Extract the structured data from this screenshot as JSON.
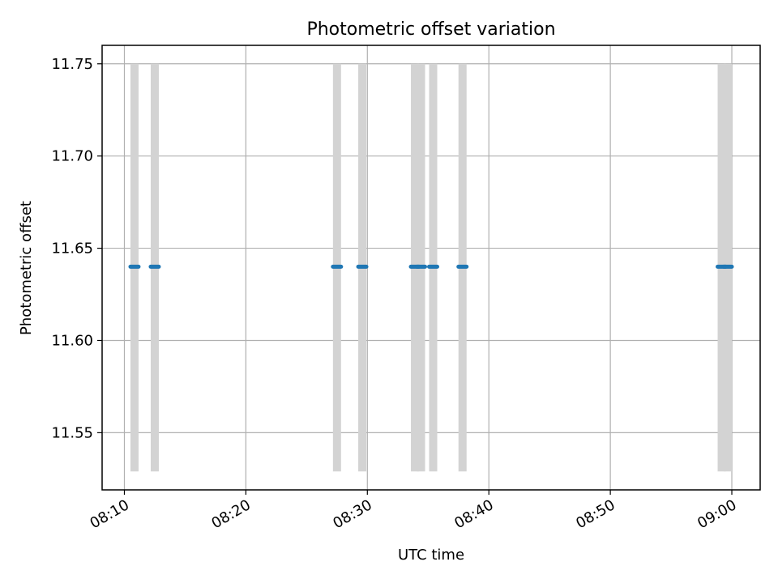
{
  "chart_data": {
    "type": "scatter",
    "title": "Photometric offset variation",
    "xlabel": "UTC time",
    "ylabel": "Photometric offset",
    "x_ticks": [
      "08:10",
      "08:20",
      "08:30",
      "08:40",
      "08:50",
      "09:00"
    ],
    "y_ticks": [
      "11.55",
      "11.60",
      "11.65",
      "11.70",
      "11.75"
    ],
    "xlim": [
      "08:08:10",
      "09:02:20"
    ],
    "ylim": [
      11.519,
      11.76
    ],
    "grid": true,
    "colors": {
      "points": "#1f77b4",
      "bands": "#d3d3d3",
      "grid": "#b0b0b0"
    },
    "exposure_bands": {
      "y_range": [
        11.529,
        11.75
      ],
      "intervals": [
        [
          "08:10:30",
          "08:11:10"
        ],
        [
          "08:12:10",
          "08:12:50"
        ],
        [
          "08:27:10",
          "08:27:50"
        ],
        [
          "08:29:15",
          "08:29:55"
        ],
        [
          "08:33:35",
          "08:34:15"
        ],
        [
          "08:34:05",
          "08:34:45"
        ],
        [
          "08:35:05",
          "08:35:45"
        ],
        [
          "08:37:30",
          "08:38:10"
        ],
        [
          "08:58:50",
          "08:59:30"
        ],
        [
          "08:59:20",
          "09:00:00"
        ]
      ]
    },
    "series": [
      {
        "segments": [
          {
            "x_start": "08:10:30",
            "x_end": "08:11:10",
            "y": 11.64
          },
          {
            "x_start": "08:12:10",
            "x_end": "08:12:50",
            "y": 11.64
          },
          {
            "x_start": "08:27:10",
            "x_end": "08:27:50",
            "y": 11.64
          },
          {
            "x_start": "08:29:15",
            "x_end": "08:29:55",
            "y": 11.64
          },
          {
            "x_start": "08:33:35",
            "x_end": "08:34:15",
            "y": 11.64
          },
          {
            "x_start": "08:34:05",
            "x_end": "08:34:45",
            "y": 11.64
          },
          {
            "x_start": "08:35:05",
            "x_end": "08:35:45",
            "y": 11.64
          },
          {
            "x_start": "08:37:30",
            "x_end": "08:38:10",
            "y": 11.64
          },
          {
            "x_start": "08:58:50",
            "x_end": "08:59:30",
            "y": 11.64
          },
          {
            "x_start": "08:59:20",
            "x_end": "09:00:00",
            "y": 11.64
          }
        ]
      }
    ]
  }
}
